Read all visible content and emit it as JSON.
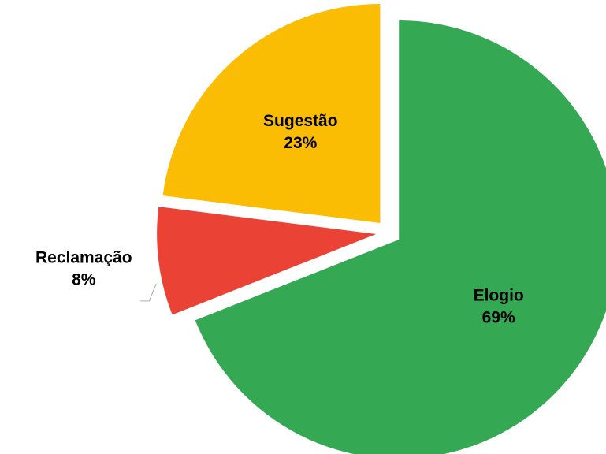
{
  "chart_data": {
    "type": "pie",
    "categories": [
      "Elogio",
      "Reclamação",
      "Sugestão"
    ],
    "values": [
      69,
      8,
      23
    ],
    "value_labels": [
      "69%",
      "8%",
      "23%"
    ],
    "colors": [
      "#34a853",
      "#ea4335",
      "#fbbc04"
    ]
  }
}
